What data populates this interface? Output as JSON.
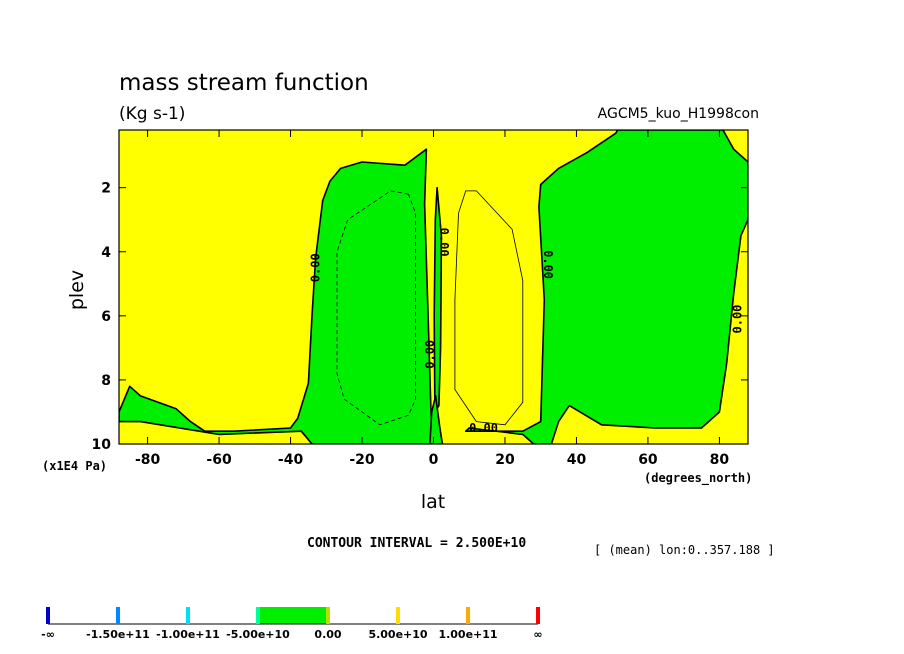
{
  "chart_data": {
    "type": "contour",
    "title": "mass stream function",
    "units": "(Kg s-1)",
    "run_name": "AGCM5_kuo_H1998con",
    "xlabel": "lat",
    "x_unit": "(degrees_north)",
    "ylabel": "plev",
    "y_unit": "(x1E4 Pa)",
    "xlim": [
      -88,
      88
    ],
    "ylim": [
      10,
      0.2
    ],
    "x_ticks": [
      -80,
      -60,
      -40,
      -20,
      0,
      20,
      40,
      60,
      80
    ],
    "y_ticks": [
      2,
      4,
      6,
      8,
      10
    ],
    "contour_interval_text": "CONTOUR INTERVAL = 2.500E+10",
    "mean_info": "[ (mean) lon:0..357.188 ]",
    "colors": {
      "positive": "#ffff00",
      "negative": "#00ee00",
      "line": "#000000"
    },
    "negative_regions": [
      {
        "name": "south-hemisphere cell",
        "points": [
          [
            -88,
            9.0
          ],
          [
            -85,
            8.2
          ],
          [
            -83,
            8.4
          ],
          [
            -82,
            8.5
          ],
          [
            -72,
            8.9
          ],
          [
            -68,
            9.3
          ],
          [
            -64,
            9.6
          ],
          [
            -56,
            9.6
          ],
          [
            -40,
            9.5
          ],
          [
            -38,
            9.2
          ],
          [
            -35,
            8.1
          ],
          [
            -34,
            6.0
          ],
          [
            -33,
            4.2
          ],
          [
            -31,
            2.4
          ],
          [
            -29,
            1.8
          ],
          [
            -26,
            1.4
          ],
          [
            -20,
            1.2
          ],
          [
            -8,
            1.3
          ],
          [
            -2,
            0.8
          ],
          [
            -2.5,
            2.5
          ],
          [
            -1.5,
            6.0
          ],
          [
            -0.7,
            9.0
          ],
          [
            0,
            10
          ],
          [
            -34,
            10
          ],
          [
            -37,
            9.6
          ],
          [
            -60,
            9.7
          ],
          [
            -82,
            9.3
          ],
          [
            -88,
            9.3
          ]
        ]
      },
      {
        "name": "equatorial sliver",
        "points": [
          [
            1,
            2.0
          ],
          [
            2.2,
            3.5
          ],
          [
            2.0,
            7.0
          ],
          [
            1.5,
            8.8
          ],
          [
            0.4,
            9.0
          ],
          [
            0.2,
            6.0
          ],
          [
            0.5,
            3.0
          ]
        ]
      },
      {
        "name": "near-equator surface cell",
        "points": [
          [
            -1,
            10
          ],
          [
            -0.5,
            9.0
          ],
          [
            0.6,
            8.5
          ],
          [
            1.8,
            9.5
          ],
          [
            2.5,
            10
          ]
        ]
      },
      {
        "name": "north-hemisphere cell",
        "points": [
          [
            28,
            10
          ],
          [
            25,
            9.7
          ],
          [
            10,
            9.5
          ],
          [
            9,
            9.6
          ],
          [
            25,
            9.6
          ],
          [
            30,
            9.3
          ],
          [
            31,
            5.5
          ],
          [
            29.5,
            2.6
          ],
          [
            30,
            1.9
          ],
          [
            35,
            1.4
          ],
          [
            43,
            0.9
          ],
          [
            51,
            0.3
          ],
          [
            51.5,
            0.2
          ],
          [
            81,
            0.2
          ],
          [
            84,
            0.8
          ],
          [
            88,
            1.2
          ],
          [
            88,
            3.0
          ],
          [
            86,
            3.5
          ],
          [
            84,
            5.3
          ],
          [
            82,
            7.5
          ],
          [
            80,
            9.0
          ],
          [
            75,
            9.5
          ],
          [
            62,
            9.5
          ],
          [
            47,
            9.4
          ],
          [
            38,
            8.8
          ],
          [
            35,
            9.3
          ],
          [
            33,
            10
          ]
        ]
      }
    ],
    "negative_contours": [
      {
        "level": -25000000000.0,
        "points": [
          [
            -7,
            2.2
          ],
          [
            -5,
            2.8
          ],
          [
            -5,
            4.5
          ],
          [
            -5,
            8.6
          ],
          [
            -7,
            9.1
          ],
          [
            -15,
            9.4
          ],
          [
            -25,
            8.6
          ],
          [
            -27,
            7.8
          ],
          [
            -27,
            4.0
          ],
          [
            -24,
            3.0
          ],
          [
            -12,
            2.1
          ]
        ]
      }
    ],
    "positive_contours": [
      {
        "level": 25000000000.0,
        "points": [
          [
            9,
            2.1
          ],
          [
            12,
            2.1
          ],
          [
            22,
            3.3
          ],
          [
            25,
            4.9
          ],
          [
            25,
            8.7
          ],
          [
            20,
            9.4
          ],
          [
            12,
            9.3
          ],
          [
            6,
            8.3
          ],
          [
            6,
            5.5
          ],
          [
            7,
            2.8
          ]
        ]
      }
    ],
    "contour_labels": [
      {
        "text": "0.00",
        "lat": -33,
        "plev": 4.5,
        "rotate": -90
      },
      {
        "text": "0.00",
        "lat": 3,
        "plev": 3.7,
        "rotate": 90
      },
      {
        "text": "0.00",
        "lat": -1,
        "plev": 7.2,
        "rotate": -90
      },
      {
        "text": "0.00",
        "lat": 32,
        "plev": 4.4,
        "rotate": 90
      },
      {
        "text": "0.00",
        "lat": 85,
        "plev": 6.1,
        "rotate": -90
      },
      {
        "text": "0.00",
        "lat": 14,
        "plev": 9.5,
        "rotate": 0
      }
    ],
    "colorbar": {
      "labels": [
        "-∞",
        "-1.50e+11",
        "-1.00e+11",
        "-5.00e+10",
        "0.00",
        "5.00e+10",
        "1.00e+11",
        "∞"
      ],
      "ticks": [
        "#0000cc",
        "#0088ff",
        "#00ddff",
        "#00ff99",
        "#bbdd00",
        "#ffdd00",
        "#ffaa00",
        "#ff0000"
      ],
      "filled_span": [
        3,
        4
      ],
      "fill_color": "#00ee00"
    }
  }
}
